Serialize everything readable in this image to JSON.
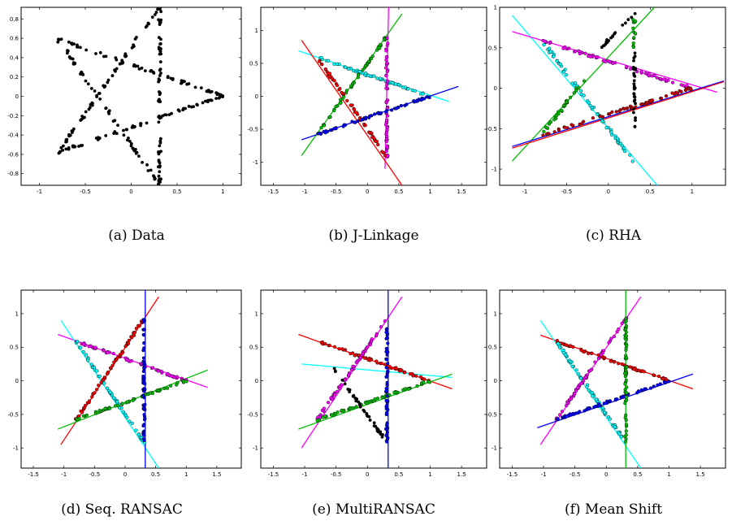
{
  "chart_data": [
    {
      "type": "scatter",
      "caption": "(a) Data",
      "xlim": [
        -1.2,
        1.2
      ],
      "ylim": [
        -0.92,
        0.92
      ],
      "xticks": [
        -1,
        -0.5,
        0,
        0.5,
        1
      ],
      "yticks": [
        -0.8,
        -0.6,
        -0.4,
        -0.2,
        0,
        0.2,
        0.4,
        0.6,
        0.8
      ],
      "xtick_labels": [
        "-1",
        "-0.5",
        "0",
        "0.5",
        "1"
      ],
      "ytick_labels": [
        "-0.8",
        "-0.6",
        "-0.4",
        "-0.2",
        "0",
        "0.2",
        "0.4",
        "0.6",
        "0.8"
      ],
      "series": [
        {
          "color": "#000000",
          "points": "segments",
          "segments": [
            [
              [
                -0.8,
                -0.58
              ],
              [
                0.31,
                0.92
              ]
            ],
            [
              [
                -0.8,
                0.59
              ],
              [
                0.31,
                -0.92
              ]
            ],
            [
              [
                -0.8,
                0.59
              ],
              [
                1.0,
                0.0
              ]
            ],
            [
              [
                -0.8,
                -0.58
              ],
              [
                1.0,
                0.0
              ]
            ],
            [
              [
                0.31,
                -0.92
              ],
              [
                0.31,
                0.92
              ]
            ]
          ]
        }
      ],
      "lines": []
    },
    {
      "type": "scatter",
      "caption": "(b) J-Linkage",
      "xlim": [
        -1.7,
        1.9
      ],
      "ylim": [
        -1.35,
        1.35
      ],
      "xticks": [
        -1.5,
        -1,
        -0.5,
        0,
        0.5,
        1,
        1.5
      ],
      "yticks": [
        -1,
        -0.5,
        0,
        0.5,
        1
      ],
      "xtick_labels": [
        "-1.5",
        "-1",
        "-0.5",
        "0",
        "0.5",
        "1",
        "1.5"
      ],
      "ytick_labels": [
        "-1",
        "-0.5",
        "0",
        "0.5",
        "1"
      ],
      "series": [
        {
          "color": "#00ffff",
          "segments": [
            [
              [
                -0.8,
                0.59
              ],
              [
                1.0,
                0.0
              ]
            ]
          ]
        },
        {
          "color": "#00c000",
          "segments": [
            [
              [
                -0.8,
                -0.58
              ],
              [
                0.31,
                0.92
              ]
            ]
          ]
        },
        {
          "color": "#ff00ff",
          "segments": [
            [
              [
                0.31,
                -0.92
              ],
              [
                0.31,
                0.92
              ]
            ]
          ]
        },
        {
          "color": "#ff0000",
          "segments": [
            [
              [
                -0.8,
                0.59
              ],
              [
                0.31,
                -0.92
              ]
            ]
          ]
        },
        {
          "color": "#0000ff",
          "segments": [
            [
              [
                -0.8,
                -0.58
              ],
              [
                1.0,
                0.0
              ]
            ]
          ]
        }
      ],
      "lines": [
        {
          "color": "#00ffff",
          "from": [
            -1.1,
            0.69
          ],
          "to": [
            1.3,
            -0.08
          ]
        },
        {
          "color": "#00c000",
          "from": [
            -1.05,
            -0.9
          ],
          "to": [
            0.55,
            1.25
          ]
        },
        {
          "color": "#ff00ff",
          "from": [
            0.28,
            -1.1
          ],
          "to": [
            0.34,
            1.45
          ]
        },
        {
          "color": "#ff0000",
          "from": [
            -1.05,
            0.85
          ],
          "to": [
            0.55,
            -1.35
          ]
        },
        {
          "color": "#0000ff",
          "from": [
            -1.05,
            -0.66
          ],
          "to": [
            1.45,
            0.15
          ]
        }
      ]
    },
    {
      "type": "scatter",
      "caption": "(c) RHA",
      "xlim": [
        -1.3,
        1.4
      ],
      "ylim": [
        -1.2,
        1.0
      ],
      "xticks": [
        -1,
        -0.5,
        0,
        0.5,
        1
      ],
      "yticks": [
        -1,
        -0.5,
        0,
        0.5,
        1
      ],
      "xtick_labels": [
        "-1",
        "-0.5",
        "0",
        "0.5",
        "1"
      ],
      "ytick_labels": [
        "-1",
        "-0.5",
        "0",
        "0.5",
        "1"
      ],
      "series": [
        {
          "color": "#00ffff",
          "segments": [
            [
              [
                -0.8,
                0.59
              ],
              [
                0.31,
                -0.92
              ]
            ]
          ]
        },
        {
          "color": "#ff00ff",
          "segments": [
            [
              [
                -0.8,
                0.59
              ],
              [
                1.0,
                0.0
              ]
            ]
          ]
        },
        {
          "color": "#00c000",
          "segments": [
            [
              [
                -0.8,
                -0.58
              ],
              [
                -0.25,
                0.15
              ]
            ],
            [
              [
                0.31,
                0.5
              ],
              [
                0.31,
                0.92
              ]
            ]
          ]
        },
        {
          "color": "#000000",
          "segments": [
            [
              [
                0.31,
                -0.5
              ],
              [
                0.31,
                0.5
              ]
            ],
            [
              [
                -0.1,
                0.48
              ],
              [
                0.31,
                0.92
              ]
            ]
          ]
        },
        {
          "color": "#cc0000",
          "segments": [
            [
              [
                -0.8,
                -0.58
              ],
              [
                1.0,
                0.0
              ]
            ]
          ]
        }
      ],
      "lines": [
        {
          "color": "#00ffff",
          "from": [
            -1.15,
            0.9
          ],
          "to": [
            0.6,
            -1.22
          ]
        },
        {
          "color": "#ff00ff",
          "from": [
            -1.15,
            0.7
          ],
          "to": [
            1.3,
            -0.05
          ]
        },
        {
          "color": "#00c000",
          "from": [
            -1.15,
            -0.9
          ],
          "to": [
            0.55,
            1.0
          ]
        },
        {
          "color": "#0000ff",
          "from": [
            -1.15,
            -0.72
          ],
          "to": [
            1.38,
            0.09
          ]
        },
        {
          "color": "#ff0000",
          "from": [
            -1.15,
            -0.74
          ],
          "to": [
            1.38,
            0.08
          ]
        }
      ]
    },
    {
      "type": "scatter",
      "caption": "(d) Seq. RANSAC",
      "xlim": [
        -1.7,
        1.9
      ],
      "ylim": [
        -1.3,
        1.35
      ],
      "xticks": [
        -1.5,
        -1,
        -0.5,
        0,
        0.5,
        1,
        1.5
      ],
      "yticks": [
        -1,
        -0.5,
        0,
        0.5,
        1
      ],
      "xtick_labels": [
        "-1.5",
        "-1",
        "-0.5",
        "0",
        "0.5",
        "1",
        "1.5"
      ],
      "ytick_labels": [
        "-1",
        "-0.5",
        "0",
        "0.5",
        "1"
      ],
      "series": [
        {
          "color": "#ff00ff",
          "segments": [
            [
              [
                -0.8,
                0.59
              ],
              [
                1.0,
                0.0
              ]
            ]
          ]
        },
        {
          "color": "#00ffff",
          "segments": [
            [
              [
                -0.8,
                0.59
              ],
              [
                0.31,
                -0.92
              ]
            ]
          ]
        },
        {
          "color": "#ff0000",
          "segments": [
            [
              [
                -0.8,
                -0.58
              ],
              [
                0.31,
                0.92
              ]
            ]
          ]
        },
        {
          "color": "#00c000",
          "segments": [
            [
              [
                -0.8,
                -0.58
              ],
              [
                1.0,
                0.0
              ]
            ]
          ]
        },
        {
          "color": "#0000ff",
          "segments": [
            [
              [
                0.31,
                -0.92
              ],
              [
                0.31,
                0.92
              ]
            ]
          ]
        }
      ],
      "lines": [
        {
          "color": "#ff00ff",
          "from": [
            -1.1,
            0.69
          ],
          "to": [
            1.35,
            -0.1
          ]
        },
        {
          "color": "#00ffff",
          "from": [
            -1.05,
            0.9
          ],
          "to": [
            0.55,
            -1.3
          ]
        },
        {
          "color": "#ff0000",
          "from": [
            -1.05,
            -0.95
          ],
          "to": [
            0.55,
            1.25
          ]
        },
        {
          "color": "#00c000",
          "from": [
            -1.1,
            -0.72
          ],
          "to": [
            1.35,
            0.16
          ]
        },
        {
          "color": "#0000ff",
          "from": [
            0.33,
            -1.3
          ],
          "to": [
            0.33,
            1.35
          ]
        }
      ]
    },
    {
      "type": "scatter",
      "caption": "(e) MultiRANSAC",
      "xlim": [
        -1.7,
        1.9
      ],
      "ylim": [
        -1.3,
        1.35
      ],
      "xticks": [
        -1.5,
        -1,
        -0.5,
        0,
        0.5,
        1,
        1.5
      ],
      "yticks": [
        -1,
        -0.5,
        0,
        0.5,
        1
      ],
      "xtick_labels": [
        "-1.5",
        "-1",
        "-0.5",
        "0",
        "0.5",
        "1",
        "1.5"
      ],
      "ytick_labels": [
        "-1",
        "-0.5",
        "0",
        "0.5",
        "1"
      ],
      "series": [
        {
          "color": "#ff0000",
          "segments": [
            [
              [
                -0.8,
                0.59
              ],
              [
                1.0,
                0.0
              ]
            ]
          ]
        },
        {
          "color": "#ff00ff",
          "segments": [
            [
              [
                -0.8,
                -0.58
              ],
              [
                0.31,
                0.92
              ]
            ]
          ]
        },
        {
          "color": "#00c000",
          "segments": [
            [
              [
                -0.8,
                -0.58
              ],
              [
                1.0,
                0.0
              ]
            ]
          ]
        },
        {
          "color": "#000000",
          "segments": [
            [
              [
                -0.55,
                0.2
              ],
              [
                0.31,
                -0.92
              ]
            ]
          ]
        },
        {
          "color": "#0000ff",
          "segments": [
            [
              [
                0.31,
                -0.92
              ],
              [
                0.31,
                0.92
              ]
            ]
          ]
        }
      ],
      "lines": [
        {
          "color": "#ff0000",
          "from": [
            -1.1,
            0.69
          ],
          "to": [
            1.35,
            -0.12
          ]
        },
        {
          "color": "#00ffff",
          "from": [
            -1.05,
            0.25
          ],
          "to": [
            1.35,
            0.05
          ]
        },
        {
          "color": "#ff00ff",
          "from": [
            -1.05,
            -1.0
          ],
          "to": [
            0.55,
            1.25
          ]
        },
        {
          "color": "#00c000",
          "from": [
            -1.1,
            -0.72
          ],
          "to": [
            1.35,
            0.1
          ]
        },
        {
          "color": "#0000ff",
          "from": [
            0.33,
            -1.3
          ],
          "to": [
            0.33,
            1.35
          ]
        }
      ]
    },
    {
      "type": "scatter",
      "caption": "(f) Mean Shift",
      "xlim": [
        -1.7,
        1.9
      ],
      "ylim": [
        -1.3,
        1.35
      ],
      "xticks": [
        -1.5,
        -1,
        -0.5,
        0,
        0.5,
        1,
        1.5
      ],
      "yticks": [
        -1,
        -0.5,
        0,
        0.5,
        1
      ],
      "xtick_labels": [
        "-1.5",
        "-1",
        "-0.5",
        "0",
        "0.5",
        "1",
        "1.5"
      ],
      "ytick_labels": [
        "-1",
        "-0.5",
        "0",
        "0.5",
        "1"
      ],
      "series": [
        {
          "color": "#ff0000",
          "segments": [
            [
              [
                -0.8,
                0.59
              ],
              [
                1.0,
                0.0
              ]
            ]
          ]
        },
        {
          "color": "#00ffff",
          "segments": [
            [
              [
                -0.8,
                0.59
              ],
              [
                0.31,
                -0.92
              ]
            ]
          ]
        },
        {
          "color": "#ff00ff",
          "segments": [
            [
              [
                -0.8,
                -0.58
              ],
              [
                0.31,
                0.92
              ]
            ]
          ]
        },
        {
          "color": "#0000ff",
          "segments": [
            [
              [
                -0.8,
                -0.58
              ],
              [
                1.0,
                0.0
              ]
            ]
          ]
        },
        {
          "color": "#00c000",
          "segments": [
            [
              [
                0.31,
                -0.92
              ],
              [
                0.31,
                0.92
              ]
            ]
          ]
        }
      ],
      "lines": [
        {
          "color": "#ff0000",
          "from": [
            -1.05,
            0.68
          ],
          "to": [
            1.38,
            -0.12
          ]
        },
        {
          "color": "#00ffff",
          "from": [
            -1.05,
            0.9
          ],
          "to": [
            0.55,
            -1.3
          ]
        },
        {
          "color": "#ff00ff",
          "from": [
            -1.05,
            -0.95
          ],
          "to": [
            0.55,
            1.25
          ]
        },
        {
          "color": "#0000ff",
          "from": [
            -1.1,
            -0.7
          ],
          "to": [
            1.38,
            0.1
          ]
        },
        {
          "color": "#00c000",
          "from": [
            0.31,
            -1.3
          ],
          "to": [
            0.31,
            1.35
          ]
        }
      ]
    }
  ]
}
